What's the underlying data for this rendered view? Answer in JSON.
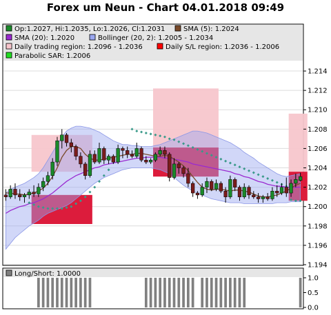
{
  "title": "Forex um Neun - Chart 04.01.2018 09:49",
  "chart_data": [
    {
      "type": "candlestick",
      "title": "Forex um Neun - Chart 04.01.2018 09:49",
      "ylim": [
        1.194,
        1.215
      ],
      "yticks": [
        "1.194",
        "1.196",
        "1.198",
        "1.200",
        "1.202",
        "1.204",
        "1.206",
        "1.208",
        "1.210",
        "1.212",
        "1.214"
      ],
      "legend": [
        {
          "label": "Op:1.2027, Hi:1.2035, Lo:1.2026, Cl:1.2031",
          "color": "#1a8a2a"
        },
        {
          "label": "SMA (5): 1.2024",
          "color": "#7a4a2a"
        },
        {
          "label": "SMA (20): 1.2020",
          "color": "#9a2ad0"
        },
        {
          "label": "Bollinger (20, 2): 1.2005 - 1.2034",
          "color": "#9aa6f0"
        },
        {
          "label": "Daily trading region: 1.2096 - 1.2036",
          "color": "#f7c6cc"
        },
        {
          "label": "Daily S/L region: 1.2036 - 1.2006",
          "color": "#ff0000"
        },
        {
          "label": "Parabolic SAR: 1.2006",
          "color": "#22dd22"
        }
      ],
      "candles": [
        [
          1.2012,
          1.2018,
          1.2006,
          1.201
        ],
        [
          1.201,
          1.2022,
          1.2008,
          1.2018
        ],
        [
          1.2018,
          1.2024,
          1.2008,
          1.2012
        ],
        [
          1.2012,
          1.2018,
          1.2006,
          1.201
        ],
        [
          1.201,
          1.2014,
          1.2004,
          1.2012
        ],
        [
          1.2012,
          1.2018,
          1.2008,
          1.2015
        ],
        [
          1.2015,
          1.2022,
          1.201,
          1.2013
        ],
        [
          1.2013,
          1.2024,
          1.201,
          1.202
        ],
        [
          1.202,
          1.203,
          1.2016,
          1.2026
        ],
        [
          1.2026,
          1.2036,
          1.2022,
          1.2032
        ],
        [
          1.2032,
          1.205,
          1.2028,
          1.2046
        ],
        [
          1.2046,
          1.2072,
          1.2042,
          1.2068
        ],
        [
          1.2068,
          1.208,
          1.206,
          1.2074
        ],
        [
          1.2074,
          1.2076,
          1.2062,
          1.2066
        ],
        [
          1.2066,
          1.207,
          1.2056,
          1.2062
        ],
        [
          1.2062,
          1.2064,
          1.2048,
          1.2052
        ],
        [
          1.2052,
          1.2056,
          1.204,
          1.2044
        ],
        [
          1.2044,
          1.2046,
          1.2028,
          1.2032
        ],
        [
          1.2032,
          1.2058,
          1.203,
          1.2054
        ],
        [
          1.2054,
          1.2058,
          1.2044,
          1.2046
        ],
        [
          1.2046,
          1.2066,
          1.2044,
          1.206
        ],
        [
          1.206,
          1.2062,
          1.2044,
          1.2048
        ],
        [
          1.2048,
          1.2054,
          1.2044,
          1.2052
        ],
        [
          1.2052,
          1.2054,
          1.2044,
          1.2046
        ],
        [
          1.2046,
          1.2064,
          1.2044,
          1.206
        ],
        [
          1.206,
          1.2062,
          1.205,
          1.2058
        ],
        [
          1.2058,
          1.2062,
          1.205,
          1.2054
        ],
        [
          1.2054,
          1.2058,
          1.205,
          1.2052
        ],
        [
          1.2052,
          1.2066,
          1.205,
          1.206
        ],
        [
          1.206,
          1.2062,
          1.2046,
          1.2048
        ],
        [
          1.2048,
          1.2052,
          1.2044,
          1.2046
        ],
        [
          1.2046,
          1.205,
          1.2044,
          1.2048
        ],
        [
          1.2048,
          1.2056,
          1.2046,
          1.2054
        ],
        [
          1.2054,
          1.2062,
          1.2052,
          1.2058
        ],
        [
          1.2058,
          1.2062,
          1.205,
          1.2054
        ],
        [
          1.2054,
          1.2056,
          1.2026,
          1.203
        ],
        [
          1.203,
          1.205,
          1.2028,
          1.2044
        ],
        [
          1.2044,
          1.2046,
          1.2034,
          1.204
        ],
        [
          1.204,
          1.2042,
          1.203,
          1.2034
        ],
        [
          1.2034,
          1.204,
          1.202,
          1.2024
        ],
        [
          1.2024,
          1.2026,
          1.201,
          1.2014
        ],
        [
          1.2014,
          1.2016,
          1.2008,
          1.2012
        ],
        [
          1.2012,
          1.2024,
          1.201,
          1.202
        ],
        [
          1.202,
          1.203,
          1.2014,
          1.2026
        ],
        [
          1.2026,
          1.2028,
          1.2016,
          1.2018
        ],
        [
          1.2018,
          1.2028,
          1.2016,
          1.2024
        ],
        [
          1.2024,
          1.2026,
          1.2014,
          1.2016
        ],
        [
          1.2016,
          1.202,
          1.2004,
          1.201
        ],
        [
          1.201,
          1.2032,
          1.2008,
          1.2028
        ],
        [
          1.2028,
          1.203,
          1.2016,
          1.202
        ],
        [
          1.202,
          1.2022,
          1.2006,
          1.201
        ],
        [
          1.201,
          1.2024,
          1.2008,
          1.202
        ],
        [
          1.202,
          1.2022,
          1.2008,
          1.2012
        ],
        [
          1.2012,
          1.2016,
          1.2008,
          1.201
        ],
        [
          1.201,
          1.2014,
          1.2004,
          1.2008
        ],
        [
          1.2008,
          1.2012,
          1.2004,
          1.201
        ],
        [
          1.201,
          1.2014,
          1.2006,
          1.2008
        ],
        [
          1.2008,
          1.202,
          1.2006,
          1.2016
        ],
        [
          1.2016,
          1.2022,
          1.201,
          1.2014
        ],
        [
          1.2014,
          1.2024,
          1.2012,
          1.202
        ],
        [
          1.202,
          1.203,
          1.201,
          1.2014
        ],
        [
          1.2014,
          1.2028,
          1.201,
          1.2024
        ],
        [
          1.2024,
          1.2034,
          1.202,
          1.2028
        ],
        [
          1.2027,
          1.2035,
          1.2026,
          1.2031
        ]
      ],
      "sma5": [
        1.2014,
        1.2014,
        1.2013,
        1.2013,
        1.2012,
        1.2013,
        1.2014,
        1.2016,
        1.2019,
        1.2024,
        1.2031,
        1.204,
        1.2051,
        1.2058,
        1.2062,
        1.2062,
        1.206,
        1.2054,
        1.205,
        1.2048,
        1.2048,
        1.2049,
        1.205,
        1.2051,
        1.2052,
        1.2053,
        1.2054,
        1.2054,
        1.2055,
        1.2055,
        1.2054,
        1.2053,
        1.2052,
        1.2052,
        1.2053,
        1.2052,
        1.2049,
        1.2046,
        1.2042,
        1.2037,
        1.2031,
        1.2025,
        1.202,
        1.2018,
        1.2017,
        1.2018,
        1.2018,
        1.2017,
        1.2016,
        1.2017,
        1.2017,
        1.2016,
        1.2015,
        1.2013,
        1.2011,
        1.201,
        1.201,
        1.2011,
        1.2012,
        1.2014,
        1.2016,
        1.2019,
        1.2022,
        1.2024
      ],
      "sma20": [
        1.1993,
        1.1996,
        1.1998,
        1.2,
        1.2001,
        1.2003,
        1.2004,
        1.2006,
        1.2008,
        1.2011,
        1.2014,
        1.2018,
        1.2022,
        1.2026,
        1.2029,
        1.2032,
        1.2034,
        1.2036,
        1.2038,
        1.204,
        1.2041,
        1.2043,
        1.2044,
        1.2045,
        1.2046,
        1.2047,
        1.2048,
        1.2049,
        1.205,
        1.205,
        1.2051,
        1.2051,
        1.2051,
        1.2051,
        1.205,
        1.205,
        1.2049,
        1.2048,
        1.2047,
        1.2046,
        1.2044,
        1.2043,
        1.2042,
        1.2041,
        1.204,
        1.2039,
        1.2038,
        1.2037,
        1.2036,
        1.2034,
        1.2033,
        1.2031,
        1.203,
        1.2028,
        1.2026,
        1.2025,
        1.2023,
        1.2022,
        1.2021,
        1.2021,
        1.202,
        1.202,
        1.202,
        1.202
      ],
      "boll_upper": [
        1.2014,
        1.2018,
        1.202,
        1.2022,
        1.2024,
        1.2027,
        1.203,
        1.2034,
        1.204,
        1.2048,
        1.2056,
        1.2064,
        1.2072,
        1.2078,
        1.2081,
        1.2083,
        1.2083,
        1.2082,
        1.2081,
        1.2079,
        1.2077,
        1.2074,
        1.2071,
        1.2068,
        1.2066,
        1.2064,
        1.2064,
        1.2063,
        1.2063,
        1.2062,
        1.2062,
        1.2062,
        1.2063,
        1.2064,
        1.2066,
        1.2068,
        1.207,
        1.2072,
        1.2074,
        1.2076,
        1.2078,
        1.2078,
        1.2077,
        1.2076,
        1.2074,
        1.2072,
        1.207,
        1.2068,
        1.2066,
        1.2063,
        1.206,
        1.2056,
        1.2053,
        1.205,
        1.2046,
        1.2043,
        1.204,
        1.2037,
        1.2034,
        1.2032,
        1.2031,
        1.2032,
        1.2033,
        1.2034
      ],
      "boll_lower": [
        1.1956,
        1.1962,
        1.1968,
        1.1972,
        1.1976,
        1.198,
        1.1983,
        1.1986,
        1.199,
        1.1993,
        1.1995,
        1.1997,
        1.1999,
        1.2001,
        1.2004,
        1.2008,
        1.2012,
        1.2016,
        1.202,
        1.2024,
        1.2027,
        1.203,
        1.2032,
        1.2034,
        1.2036,
        1.2038,
        1.2039,
        1.204,
        1.204,
        1.204,
        1.204,
        1.204,
        1.2039,
        1.2038,
        1.2036,
        1.2034,
        1.203,
        1.2026,
        1.2022,
        1.2019,
        1.2016,
        1.2014,
        1.2012,
        1.201,
        1.2008,
        1.2007,
        1.2006,
        1.2005,
        1.2004,
        1.2004,
        1.2004,
        1.2003,
        1.2003,
        1.2003,
        1.2003,
        1.2003,
        1.2003,
        1.2003,
        1.2004,
        1.2004,
        1.2004,
        1.2005,
        1.2005,
        1.2005
      ],
      "sar": [
        null,
        null,
        null,
        null,
        null,
        1.2004,
        1.2002,
        1.2,
        1.1999,
        1.1998,
        1.1998,
        1.1998,
        1.1998,
        1.1999,
        1.2,
        1.2003,
        1.2006,
        1.201,
        1.2015,
        1.202,
        1.2026,
        1.2032,
        1.2038,
        null,
        null,
        null,
        null,
        1.208,
        1.2078,
        1.2077,
        1.2076,
        1.2075,
        1.2074,
        1.2073,
        1.2072,
        1.207,
        1.2069,
        1.2067,
        1.2065,
        1.2063,
        1.2061,
        1.2059,
        1.2057,
        1.2055,
        1.2053,
        1.2051,
        1.2049,
        1.2047,
        1.2045,
        1.2043,
        1.2041,
        1.2039,
        1.2037,
        1.2035,
        1.2033,
        1.2031,
        1.2029,
        1.2027,
        1.2025,
        1.2023,
        1.2021,
        1.2007,
        1.2006,
        1.2006
      ],
      "regions": [
        {
          "name": "trading",
          "from": 6,
          "to": 18,
          "low": 1.2036,
          "high": 1.2074,
          "color": "#f7c6cc"
        },
        {
          "name": "sl",
          "from": 6,
          "to": 18,
          "low": 1.1982,
          "high": 1.2012,
          "color": "#dc1c3c"
        },
        {
          "name": "trading",
          "from": 32,
          "to": 45,
          "low": 1.206,
          "high": 1.2122,
          "color": "#f7c6cc"
        },
        {
          "name": "sl",
          "from": 32,
          "to": 45,
          "low": 1.2031,
          "high": 1.2061,
          "color": "#dc1c3c"
        },
        {
          "name": "trading",
          "from": 61,
          "to": 64,
          "low": 1.2036,
          "high": 1.2096,
          "color": "#f7c6cc"
        },
        {
          "name": "sl",
          "from": 61,
          "to": 64,
          "low": 1.2006,
          "high": 1.2036,
          "color": "#dc1c3c"
        }
      ]
    },
    {
      "type": "bar",
      "title": "",
      "legend": [
        {
          "label": "Long/Short: 1.0000",
          "color": "#808080"
        }
      ],
      "ylim": [
        0,
        1
      ],
      "yticks": [
        "0.0",
        "0.5",
        "1.0"
      ],
      "values": [
        0,
        0,
        0,
        0,
        0,
        0,
        0,
        1,
        1,
        1,
        1,
        1,
        1,
        1,
        1,
        1,
        1,
        1,
        1,
        0,
        0,
        0,
        0,
        0,
        0,
        0,
        0,
        0,
        0,
        0,
        1,
        1,
        1,
        1,
        1,
        1,
        1,
        1,
        1,
        1,
        1,
        0,
        1,
        1,
        1,
        1,
        1,
        1,
        1,
        1,
        1,
        1,
        0,
        0,
        0,
        0,
        0,
        0,
        0,
        0,
        0,
        0,
        0,
        1
      ]
    }
  ]
}
